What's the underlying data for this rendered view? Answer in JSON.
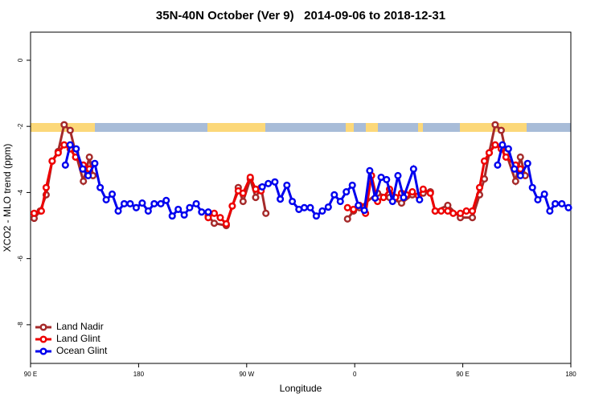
{
  "chart_data": {
    "type": "line",
    "title": "35N-40N October (Ver 9)   2014-09-06 to 2018-12-31",
    "x_label": "Longitude",
    "y_label": "XCO2 - MLO trend (ppm)",
    "xlim": [
      90,
      540
    ],
    "xticks": [
      {
        "value": 90,
        "label": "90 E"
      },
      {
        "value": 180,
        "label": "180"
      },
      {
        "value": 270,
        "label": "90 W"
      },
      {
        "value": 360,
        "label": "0"
      },
      {
        "value": 450,
        "label": "90 E"
      },
      {
        "value": 540,
        "label": "180"
      }
    ],
    "ylim": [
      -9.17,
      0.85
    ],
    "yticks": [
      0,
      -2,
      -4,
      -6,
      -8
    ],
    "legend": "bottom-left",
    "series": [
      {
        "name": "Land Nadir",
        "color": "#a52a2a",
        "x": [
          93,
          98,
          103,
          108,
          113,
          118,
          123,
          127.5,
          134,
          139,
          142,
          null,
          238,
          243,
          253,
          263,
          267,
          273,
          277.5,
          282,
          286,
          null,
          354,
          359,
          364,
          379,
          389,
          399,
          408,
          417,
          423,
          427,
          437.5,
          448,
          458,
          464,
          468,
          472,
          477,
          482,
          486,
          494,
          498,
          502
        ],
        "values": [
          -4.78,
          -4.56,
          -4.07,
          -3.05,
          -2.76,
          -1.95,
          -2.12,
          -2.8,
          -3.66,
          -2.93,
          -3.49,
          null,
          -4.71,
          -4.93,
          -5.0,
          -3.85,
          -4.27,
          -3.59,
          -4.15,
          -3.85,
          -4.63,
          null,
          -4.8,
          -4.56,
          -4.46,
          -4.02,
          -4.15,
          -4.32,
          -4.07,
          -4.02,
          -3.98,
          -4.56,
          -4.39,
          -4.76,
          -4.76,
          -4.07,
          -3.59,
          -2.8,
          -1.95,
          -2.12,
          -2.8,
          -3.66,
          -2.93,
          -3.49
        ]
      },
      {
        "name": "Land Glint",
        "color": "#ee0000",
        "x": [
          93,
          99,
          103,
          108,
          113,
          118,
          123,
          127.5,
          134,
          139,
          null,
          238,
          243,
          248,
          253,
          258,
          263,
          267,
          273,
          277.5,
          282,
          null,
          354,
          359,
          364,
          369,
          374,
          379,
          384,
          389,
          394,
          399,
          403,
          408,
          413,
          417,
          423,
          427,
          432,
          437.5,
          442,
          448,
          453,
          458,
          464,
          468,
          472,
          477,
          482,
          486,
          494,
          498
        ],
        "values": [
          -4.63,
          -4.56,
          -3.85,
          -3.05,
          -2.8,
          -2.56,
          -2.68,
          -2.93,
          -3.17,
          -3.29,
          null,
          -4.76,
          -4.63,
          -4.76,
          -4.95,
          -4.41,
          -3.95,
          -4.02,
          -3.54,
          -3.9,
          -3.95,
          null,
          -4.46,
          -4.51,
          -4.39,
          -4.63,
          -3.49,
          -4.27,
          -4.15,
          -3.9,
          -4.15,
          -4.02,
          -4.07,
          -3.98,
          -4.1,
          -3.9,
          -4.02,
          -4.56,
          -4.56,
          -4.56,
          -4.63,
          -4.63,
          -4.56,
          -4.56,
          -3.85,
          -3.05,
          -2.8,
          -2.56,
          -2.68,
          -2.93,
          -3.17,
          -3.29
        ]
      },
      {
        "name": "Ocean Glint",
        "color": "#0000ee",
        "x": [
          119,
          123,
          128,
          133.5,
          138,
          143.5,
          148,
          153,
          158,
          163,
          168,
          173,
          178,
          183,
          188,
          193,
          198.5,
          203,
          208,
          213,
          218,
          222.5,
          228,
          232.5,
          238,
          null,
          283,
          288,
          293.5,
          298,
          303.5,
          308,
          313.5,
          318,
          323,
          328,
          333,
          338,
          343,
          348,
          353,
          358,
          363,
          368,
          372.5,
          377,
          382,
          386.5,
          391.5,
          396,
          400.7,
          409,
          414,
          null,
          479,
          483,
          488,
          493,
          498,
          504,
          508,
          512.5,
          518,
          522.5,
          527,
          532.5,
          538
        ],
        "values": [
          -3.17,
          -2.56,
          -2.68,
          -3.29,
          -3.49,
          -3.12,
          -3.85,
          -4.22,
          -4.05,
          -4.56,
          -4.34,
          -4.34,
          -4.46,
          -4.32,
          -4.56,
          -4.34,
          -4.34,
          -4.24,
          -4.71,
          -4.51,
          -4.68,
          -4.46,
          -4.34,
          -4.59,
          -4.59,
          null,
          -3.83,
          -3.73,
          -3.68,
          -4.2,
          -3.78,
          -4.27,
          -4.51,
          -4.46,
          -4.46,
          -4.71,
          -4.56,
          -4.44,
          -4.07,
          -4.27,
          -3.98,
          -3.78,
          -4.39,
          -4.54,
          -3.34,
          -4.17,
          -3.54,
          -3.61,
          -4.27,
          -3.49,
          -4.15,
          -3.29,
          -4.22,
          null,
          -3.17,
          -2.56,
          -2.68,
          -3.29,
          -3.49,
          -3.12,
          -3.85,
          -4.22,
          -4.05,
          -4.56,
          -4.34,
          -4.34,
          -4.46
        ]
      }
    ]
  }
}
